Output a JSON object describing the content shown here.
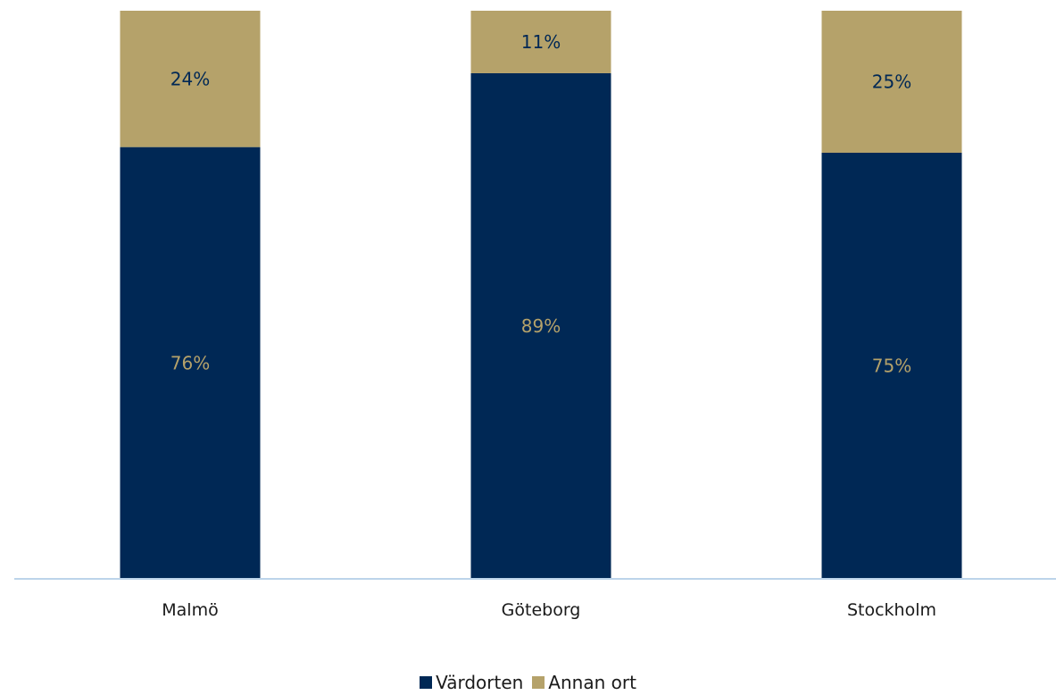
{
  "chart_data": {
    "type": "bar",
    "stacked": true,
    "categories": [
      "Malmö",
      "Göteborg",
      "Stockholm"
    ],
    "series": [
      {
        "name": "Värdorten",
        "values": [
          76,
          89,
          75
        ],
        "labels": [
          "76%",
          "89%",
          "75%"
        ],
        "color": "#002855",
        "label_color": "#b5a26a"
      },
      {
        "name": "Annan ort",
        "values": [
          24,
          11,
          25
        ],
        "labels": [
          "24%",
          "11%",
          "25%"
        ],
        "color": "#b5a26a",
        "label_color": "#002855"
      }
    ],
    "ylim": [
      0,
      100
    ],
    "grid": false,
    "legend_position": "bottom",
    "axis_color": "#bcd4ea"
  }
}
